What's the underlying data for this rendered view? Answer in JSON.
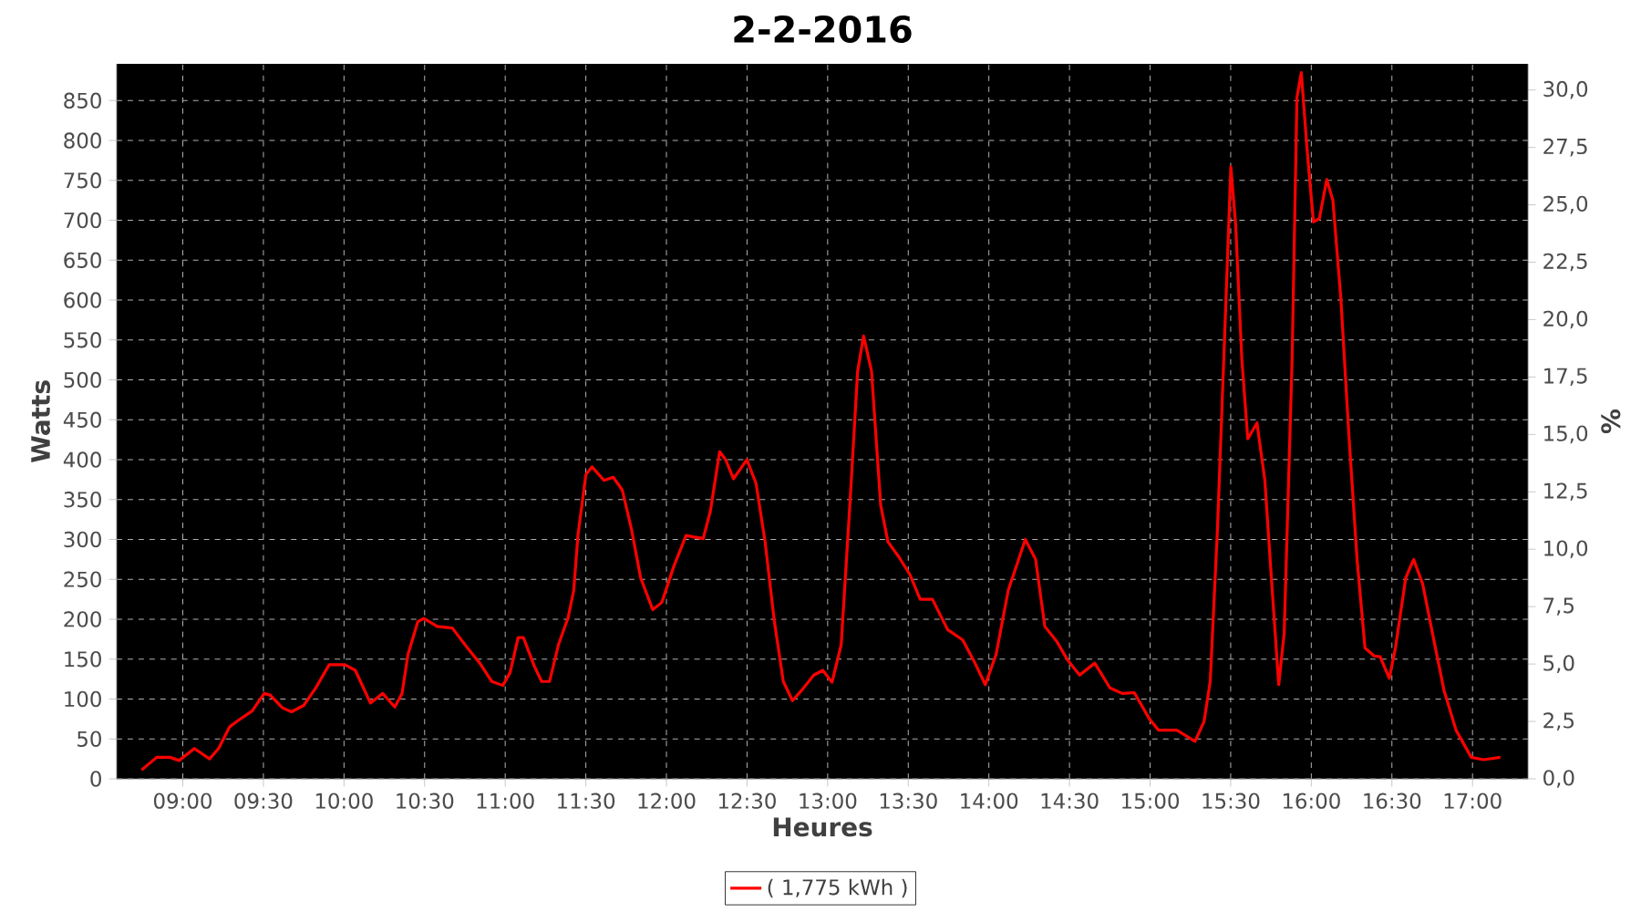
{
  "chart_data": {
    "type": "line",
    "title": "2-2-2016",
    "xlabel": "Heures",
    "ylabel": "Watts",
    "y2label": "%",
    "xlim": [
      8.59,
      17.344
    ],
    "ylim": [
      0,
      896
    ],
    "y2lim": [
      0,
      31.14
    ],
    "xticks": [
      {
        "value": 9,
        "label": "09:00"
      },
      {
        "value": 9.5,
        "label": "09:30"
      },
      {
        "value": 10,
        "label": "10:00"
      },
      {
        "value": 10.5,
        "label": "10:30"
      },
      {
        "value": 11,
        "label": "11:00"
      },
      {
        "value": 11.5,
        "label": "11:30"
      },
      {
        "value": 12,
        "label": "12:00"
      },
      {
        "value": 12.5,
        "label": "12:30"
      },
      {
        "value": 13,
        "label": "13:00"
      },
      {
        "value": 13.5,
        "label": "13:30"
      },
      {
        "value": 14,
        "label": "14:00"
      },
      {
        "value": 14.5,
        "label": "14:30"
      },
      {
        "value": 15,
        "label": "15:00"
      },
      {
        "value": 15.5,
        "label": "15:30"
      },
      {
        "value": 16,
        "label": "16:00"
      },
      {
        "value": 16.5,
        "label": "16:30"
      },
      {
        "value": 17,
        "label": "17:00"
      }
    ],
    "yticks": [
      0,
      50,
      100,
      150,
      200,
      250,
      300,
      350,
      400,
      450,
      500,
      550,
      600,
      650,
      700,
      750,
      800,
      850
    ],
    "y2ticks": [
      {
        "value": 0,
        "label": "0,0"
      },
      {
        "value": 2.5,
        "label": "2,5"
      },
      {
        "value": 5,
        "label": "5,0"
      },
      {
        "value": 7.5,
        "label": "7,5"
      },
      {
        "value": 10,
        "label": "10,0"
      },
      {
        "value": 12.5,
        "label": "12,5"
      },
      {
        "value": 15,
        "label": "15,0"
      },
      {
        "value": 17.5,
        "label": "17,5"
      },
      {
        "value": 20,
        "label": "20,0"
      },
      {
        "value": 22.5,
        "label": "22,5"
      },
      {
        "value": 25,
        "label": "25,0"
      },
      {
        "value": 27.5,
        "label": "27,5"
      },
      {
        "value": 30,
        "label": "30,0"
      }
    ],
    "grid": true,
    "legend": "bottom",
    "marker": "none",
    "line_style": "solid",
    "series": [
      {
        "name": "( 1,775 kWh )",
        "color": "#ff0000",
        "x": [
          8.744,
          8.838,
          8.92,
          8.977,
          9.072,
          9.166,
          9.222,
          9.29,
          9.335,
          9.43,
          9.505,
          9.542,
          9.618,
          9.674,
          9.75,
          9.825,
          9.908,
          10.006,
          10.07,
          10.164,
          10.24,
          10.315,
          10.36,
          10.397,
          10.458,
          10.495,
          10.578,
          10.672,
          10.766,
          10.842,
          10.917,
          10.985,
          11.03,
          11.08,
          11.113,
          11.181,
          11.226,
          11.275,
          11.33,
          11.39,
          11.425,
          11.451,
          11.5,
          11.538,
          11.613,
          11.67,
          11.726,
          11.783,
          11.84,
          11.915,
          11.971,
          12.047,
          12.122,
          12.228,
          12.273,
          12.33,
          12.367,
          12.416,
          12.499,
          12.556,
          12.612,
          12.669,
          12.725,
          12.782,
          12.839,
          12.914,
          12.97,
          13.027,
          13.084,
          13.14,
          13.186,
          13.223,
          13.272,
          13.329,
          13.374,
          13.442,
          13.51,
          13.574,
          13.65,
          13.744,
          13.838,
          13.914,
          13.978,
          14.045,
          14.12,
          14.226,
          14.29,
          14.347,
          14.422,
          14.488,
          14.563,
          14.657,
          14.751,
          14.827,
          14.902,
          14.996,
          15.053,
          15.166,
          15.279,
          15.335,
          15.373,
          15.418,
          15.467,
          15.501,
          15.531,
          15.569,
          15.606,
          15.663,
          15.712,
          15.75,
          15.798,
          15.832,
          15.881,
          15.911,
          15.938,
          15.975,
          16.013,
          16.05,
          16.096,
          16.134,
          16.183,
          16.232,
          16.284,
          16.333,
          16.39,
          16.427,
          16.484,
          16.522,
          16.586,
          16.635,
          16.691,
          16.759,
          16.823,
          16.898,
          16.992,
          17.068,
          17.173
        ],
        "values": [
          11,
          27,
          27,
          23,
          38,
          25,
          38,
          65,
          72,
          85,
          107,
          105,
          89,
          84,
          92,
          114,
          143,
          143,
          136,
          95,
          107,
          90,
          107,
          156,
          197,
          201,
          191,
          189,
          164,
          145,
          122,
          117,
          133,
          177,
          177,
          141,
          122,
          122,
          168,
          202,
          236,
          305,
          381,
          391,
          374,
          378,
          362,
          313,
          252,
          212,
          221,
          267,
          305,
          301,
          336,
          410,
          400,
          376,
          400,
          370,
          297,
          198,
          122,
          98,
          111,
          130,
          136,
          121,
          168,
          351,
          511,
          555,
          511,
          343,
          297,
          278,
          256,
          225,
          225,
          187,
          174,
          145,
          118,
          156,
          236,
          300,
          275,
          191,
          172,
          149,
          130,
          145,
          114,
          107,
          108,
          75,
          61,
          61,
          47,
          72,
          122,
          313,
          580,
          767,
          694,
          526,
          426,
          446,
          374,
          259,
          118,
          183,
          526,
          854,
          885,
          786,
          698,
          702,
          751,
          725,
          603,
          435,
          275,
          164,
          154,
          153,
          126,
          164,
          252,
          275,
          244,
          175,
          111,
          61,
          27,
          24,
          27
        ]
      }
    ]
  }
}
